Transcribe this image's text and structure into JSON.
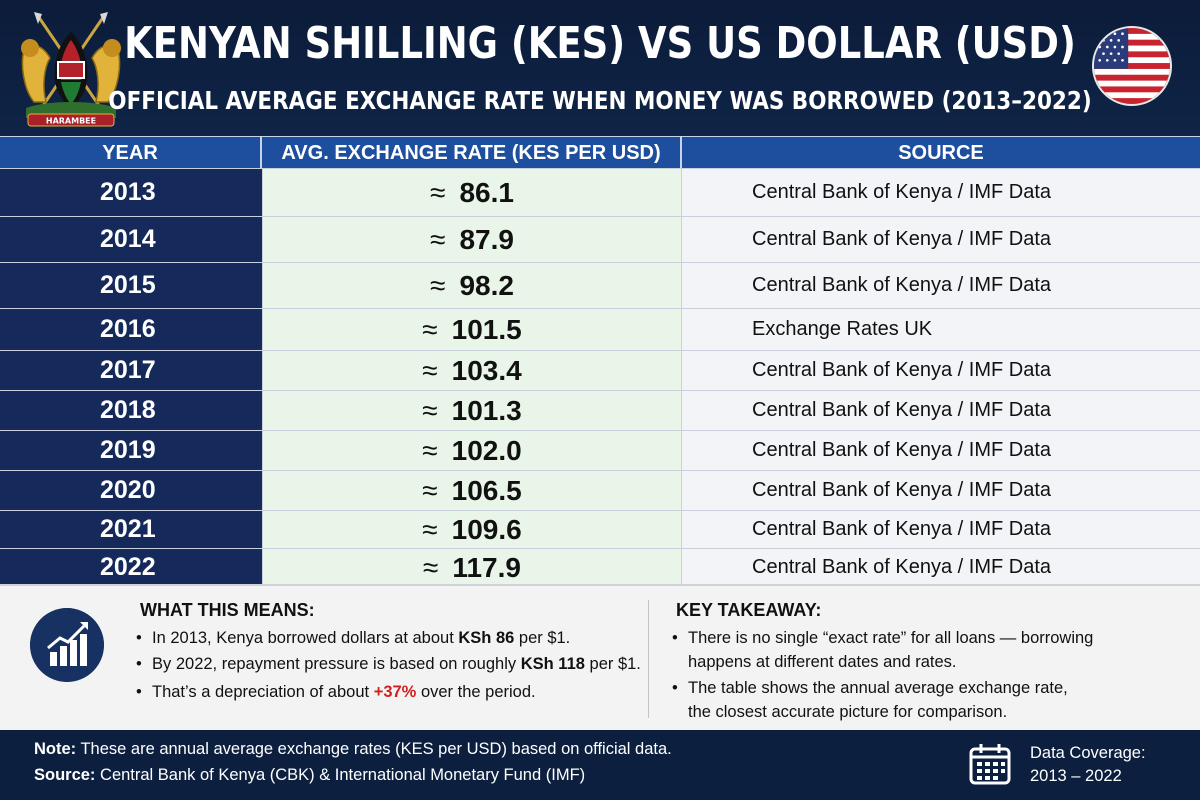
{
  "header": {
    "title": "KENYAN SHILLING (KES) VS US DOLLAR (USD)",
    "subtitle": "OFFICIAL AVERAGE EXCHANGE RATE WHEN MONEY WAS BORROWED (2013–2022)",
    "emblem_text": "HARAMBEE",
    "left_emblem": "kenya-coat-of-arms",
    "right_emblem": "us-flag-circle"
  },
  "table": {
    "headers": [
      "YEAR",
      "AVG. EXCHANGE RATE (KES PER USD)",
      "SOURCE"
    ],
    "approx_symbol": "≈",
    "rows": [
      {
        "year": "2013",
        "rate": "86.1",
        "source": "Central Bank of Kenya / IMF Data"
      },
      {
        "year": "2014",
        "rate": "87.9",
        "source": "Central Bank of Kenya / IMF Data"
      },
      {
        "year": "2015",
        "rate": "98.2",
        "source": "Central Bank of Kenya / IMF Data"
      },
      {
        "year": "2016",
        "rate": "101.5",
        "source": "Exchange Rates UK"
      },
      {
        "year": "2017",
        "rate": "103.4",
        "source": "Central Bank of Kenya / IMF Data"
      },
      {
        "year": "2018",
        "rate": "101.3",
        "source": "Central Bank of Kenya / IMF Data"
      },
      {
        "year": "2019",
        "rate": "102.0",
        "source": "Central Bank of Kenya / IMF Data"
      },
      {
        "year": "2020",
        "rate": "106.5",
        "source": "Central Bank of Kenya / IMF Data"
      },
      {
        "year": "2021",
        "rate": "109.6",
        "source": "Central Bank of Kenya / IMF Data"
      },
      {
        "year": "2022",
        "rate": "117.9",
        "source": "Central Bank of Kenya / IMF Data"
      }
    ]
  },
  "what_this_means": {
    "title": "WHAT THIS MEANS:",
    "b1_pre": "In 2013, Kenya borrowed dollars at about ",
    "b1_bold": "KSh 86",
    "b1_post": " per $1.",
    "b2_pre": "By 2022, repayment pressure is based on roughly ",
    "b2_bold": "KSh 118",
    "b2_post": " per $1.",
    "b3_pre": "That’s a depreciation of about ",
    "b3_red": "+37%",
    "b3_post": " over the period."
  },
  "key_takeaway": {
    "title": "KEY TAKEAWAY:",
    "b1_line1": "There is no single “exact rate” for all loans — borrowing",
    "b1_line2": "happens at different dates and rates.",
    "b2_line1": "The table shows the annual average exchange rate,",
    "b2_line2": "the closest accurate picture for comparison."
  },
  "footer": {
    "note_label": "Note:",
    "note_text": " These are annual average exchange rates (KES per USD) based on official data.",
    "source_label": "Source:",
    "source_text": " Central Bank of Kenya (CBK) & International Monetary Fund (IMF)",
    "coverage_label": "Data Coverage:",
    "coverage_range": "2013 – 2022"
  },
  "colors": {
    "navy": "#0d1f3f",
    "header_blue": "#1e4f9f",
    "rate_bg": "#e9f5e8",
    "accent_red": "#d21f1f"
  }
}
